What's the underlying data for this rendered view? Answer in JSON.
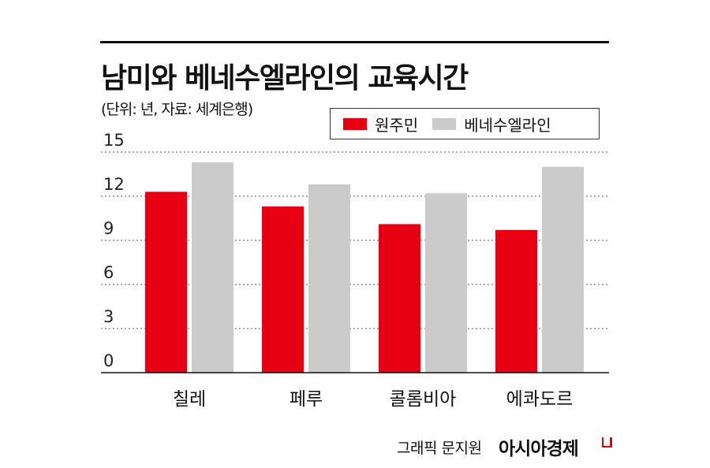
{
  "header": {
    "title": "남미와 베네수엘라인의 교육시간",
    "subtitle": "(단위: 년, 자료: 세계은행)"
  },
  "legend": [
    {
      "label": "원주민",
      "color": "#e60012"
    },
    {
      "label": "베네수엘라인",
      "color": "#cbcbcb"
    }
  ],
  "chart_data": {
    "type": "bar",
    "categories": [
      "칠레",
      "페루",
      "콜롬비아",
      "에콰도르"
    ],
    "series": [
      {
        "name": "원주민",
        "values": [
          12.3,
          11.3,
          10.1,
          9.7
        ],
        "color": "#e60012"
      },
      {
        "name": "베네수엘라인",
        "values": [
          14.3,
          12.8,
          12.2,
          14.0
        ],
        "color": "#cbcbcb"
      }
    ],
    "title": "남미와 베네수엘라인의 교육시간",
    "subtitle": "(단위: 년, 자료: 세계은행)",
    "xlabel": "",
    "ylabel": "",
    "ylim": [
      0,
      15
    ],
    "yticks": [
      "0",
      "3",
      "6",
      "9",
      "12",
      "15"
    ],
    "grid": "dotted horizontal",
    "legend_position": "top-right"
  },
  "footer": {
    "credit": "그래픽 문지원",
    "brand": "아시아경제"
  }
}
